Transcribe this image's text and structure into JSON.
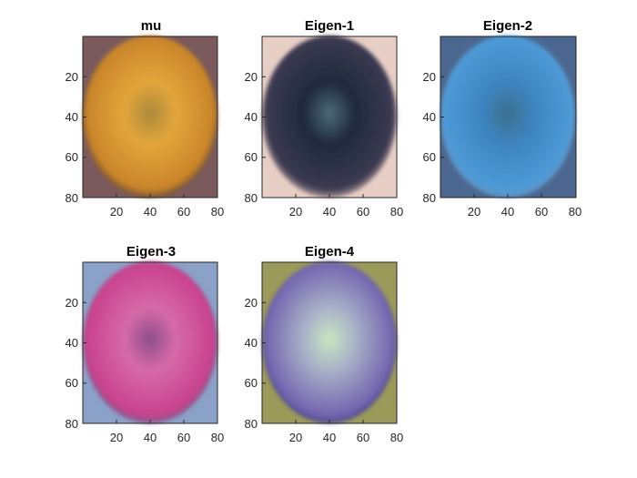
{
  "figure": {
    "panels": [
      {
        "title": "mu",
        "x_ticks": [
          "20",
          "40",
          "60",
          "80"
        ],
        "y_ticks": [
          "20",
          "40",
          "60",
          "80"
        ],
        "image_colors": {
          "bg": "#7a5a5c",
          "outer": "#c9852a",
          "mid": "#e3a53a",
          "center": "#ab8a3c",
          "edge": "#4f3a34"
        }
      },
      {
        "title": "Eigen-1",
        "x_ticks": [
          "20",
          "40",
          "60",
          "80"
        ],
        "y_ticks": [
          "20",
          "40",
          "60",
          "80"
        ],
        "image_colors": {
          "bg": "#e8cfc6",
          "outer": "#3b3a52",
          "mid": "#1f2a3a",
          "center": "#4c6a78",
          "edge": "#d6b8b0"
        }
      },
      {
        "title": "Eigen-2",
        "x_ticks": [
          "20",
          "40",
          "60",
          "80"
        ],
        "y_ticks": [
          "20",
          "40",
          "60",
          "80"
        ],
        "image_colors": {
          "bg": "#4b6790",
          "outer": "#4d9ad6",
          "mid": "#3d84c0",
          "center": "#3b6f8e",
          "edge": "#6e90b8"
        }
      },
      {
        "title": "Eigen-3",
        "x_ticks": [
          "20",
          "40",
          "60",
          "80"
        ],
        "y_ticks": [
          "20",
          "40",
          "60",
          "80"
        ],
        "image_colors": {
          "bg": "#8aa2c8",
          "outer": "#c9428e",
          "mid": "#d66aa8",
          "center": "#8e4d8c",
          "edge": "#5c6d8e"
        }
      },
      {
        "title": "Eigen-4",
        "x_ticks": [
          "20",
          "40",
          "60",
          "80"
        ],
        "y_ticks": [
          "20",
          "40",
          "60",
          "80"
        ],
        "image_colors": {
          "bg": "#9c9a58",
          "outer": "#7466b0",
          "mid": "#a9b2c8",
          "center": "#c8e6c0",
          "edge": "#3a3f7a"
        }
      }
    ]
  }
}
